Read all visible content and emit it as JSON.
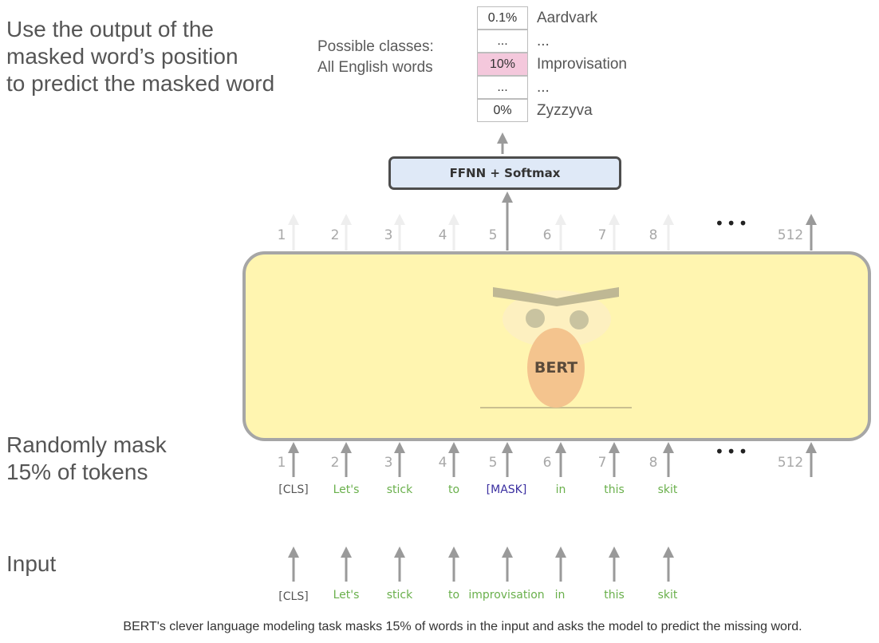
{
  "labels": {
    "output_instruction": "Use the output of the\nmasked word’s position\nto predict the masked word",
    "mask_instruction": "Randomly mask\n15% of tokens",
    "input_label": "Input",
    "possible_classes_line1": "Possible classes:",
    "possible_classes_line2": "All English words"
  },
  "classes": [
    {
      "prob": "0.1%",
      "word": "Aardvark",
      "highlight": false
    },
    {
      "prob": "...",
      "word": "...",
      "highlight": false
    },
    {
      "prob": "10%",
      "word": "Improvisation",
      "highlight": true
    },
    {
      "prob": "...",
      "word": "...",
      "highlight": false
    },
    {
      "prob": "0%",
      "word": "Zyzzyva",
      "highlight": false
    }
  ],
  "ffnn_label": "FFNN + Softmax",
  "bert_label": "BERT",
  "positions": [
    "1",
    "2",
    "3",
    "4",
    "5",
    "6",
    "7",
    "8",
    "512"
  ],
  "masked_tokens": [
    "[CLS]",
    "Let's",
    "stick",
    "to",
    "[MASK]",
    "in",
    "this",
    "skit"
  ],
  "input_tokens": [
    "[CLS]",
    "Let's",
    "stick",
    "to",
    "improvisation",
    "in",
    "this",
    "skit"
  ],
  "ellipsis": "•••",
  "caption": "BERT's clever language modeling task masks 15% of words in the input and asks the model to predict the missing word.",
  "colors": {
    "highlight": "#f4c8dc",
    "token_green": "#6ab04c",
    "token_mask": "#3a2fa0",
    "token_cls": "#555555",
    "bert_fill": "#fff5b0",
    "ffnn_fill": "#dfe9f7"
  }
}
